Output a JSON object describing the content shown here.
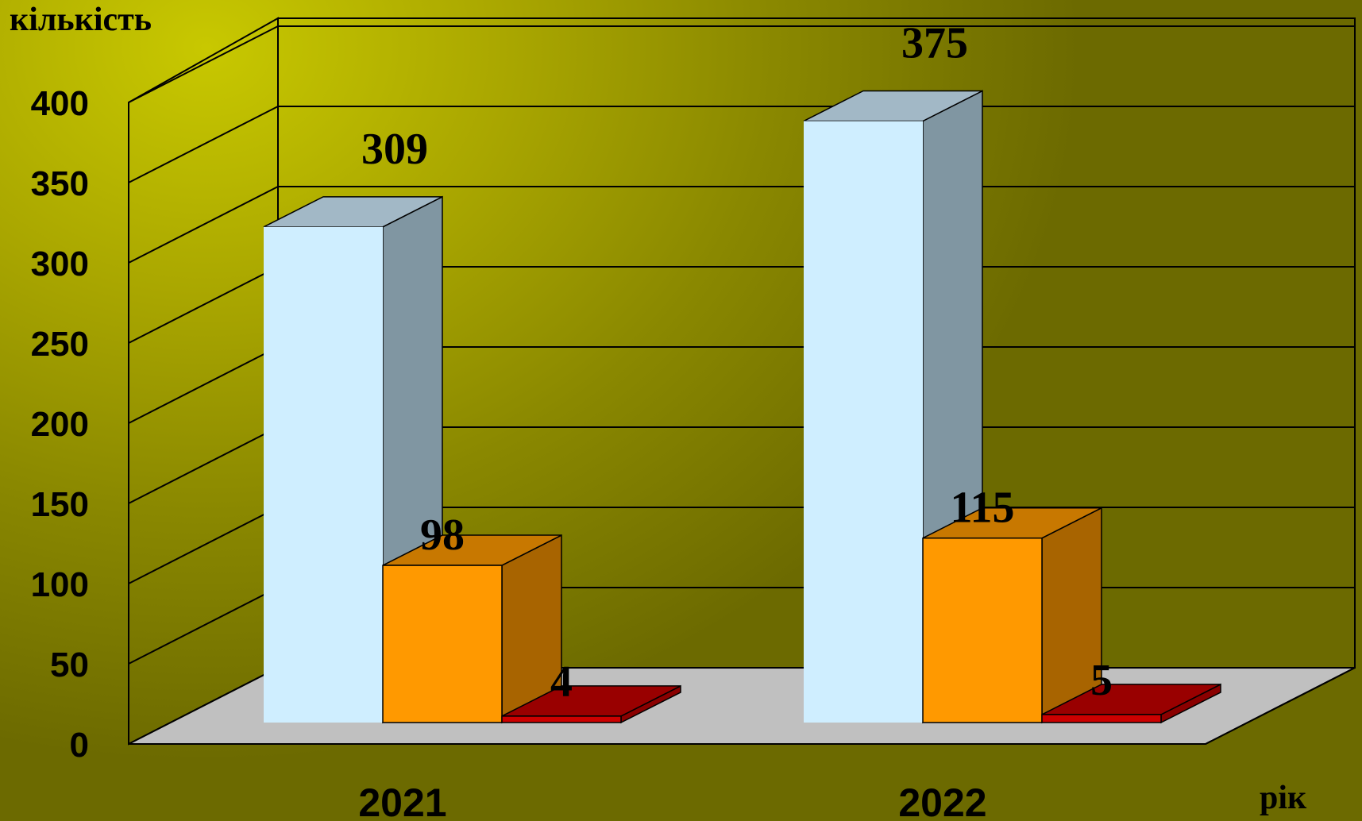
{
  "chart_data": {
    "type": "bar",
    "variant": "3d-clustered",
    "categories": [
      "2021",
      "2022"
    ],
    "series": [
      {
        "values": [
          309,
          375
        ],
        "color": "#cfeeff",
        "side_color": "#8096a2",
        "top_color": "#a2b8c6"
      },
      {
        "values": [
          98,
          115
        ],
        "color": "#ff9900",
        "side_color": "#a86400",
        "top_color": "#c87800"
      },
      {
        "values": [
          4,
          5
        ],
        "color": "#cc0000",
        "side_color": "#8a0000",
        "top_color": "#990000"
      }
    ],
    "data_labels": [
      [
        "309",
        "375"
      ],
      [
        "98",
        "115"
      ],
      [
        "4",
        "5"
      ]
    ],
    "yticks": [
      "0",
      "50",
      "100",
      "150",
      "200",
      "250",
      "300",
      "350",
      "400"
    ],
    "ylim": [
      0,
      400
    ],
    "ylabel": "кількість",
    "xlabel": "рік",
    "grid": true,
    "colors": {
      "background": "#a9a600",
      "floor": "#c0c0c0",
      "grid": "#000000",
      "text": "#000000"
    }
  }
}
